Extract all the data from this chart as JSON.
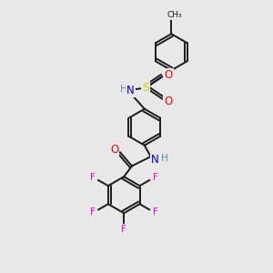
{
  "bg_color": "#e8e8e8",
  "bond_color": "#1a1a1a",
  "atom_colors": {
    "N": "#0000cd",
    "O": "#ff0000",
    "S": "#cccc00",
    "F": "#ff00cc",
    "H": "#4a9090",
    "C": "#1a1a1a"
  },
  "lw": 1.4,
  "r_ring": 0.68,
  "font_size": 7.5
}
